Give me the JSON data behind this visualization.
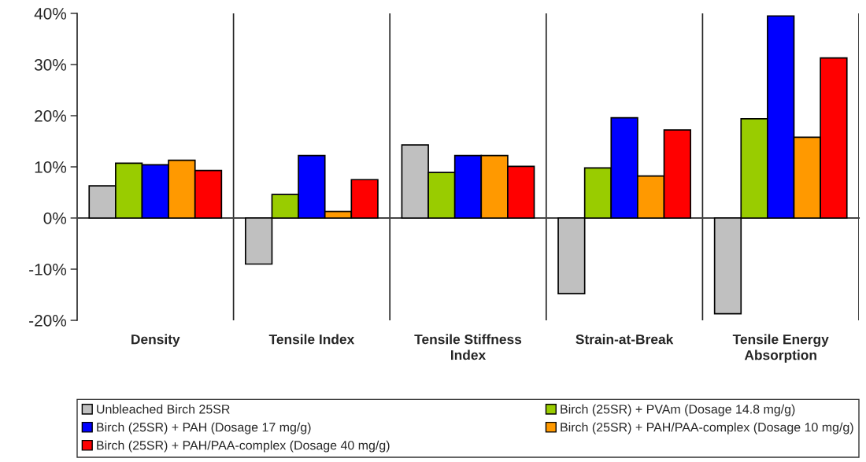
{
  "chart_data": {
    "type": "bar",
    "categories": [
      "Density",
      "Tensile Index",
      "Tensile Stiffness Index",
      "Strain-at-Break",
      "Tensile Energy Absorption"
    ],
    "series": [
      {
        "name": "Unbleached Birch 25SR",
        "color": "#c0c0c0",
        "values": [
          6.3,
          -9.0,
          14.3,
          -14.8,
          -18.7
        ]
      },
      {
        "name": "Birch (25SR) + PVAm (Dosage 14.8 mg/g)",
        "color": "#99cc00",
        "values": [
          10.7,
          4.6,
          8.9,
          9.8,
          19.4
        ]
      },
      {
        "name": "Birch (25SR) + PAH (Dosage 17 mg/g)",
        "color": "#0000ff",
        "values": [
          10.4,
          12.2,
          12.2,
          19.6,
          39.5
        ]
      },
      {
        "name": "Birch (25SR) + PAH/PAA-complex (Dosage 10 mg/g)",
        "color": "#ff9900",
        "values": [
          11.3,
          1.3,
          12.2,
          8.2,
          15.8
        ]
      },
      {
        "name": "Birch (25SR) + PAH/PAA-complex (Dosage 40 mg/g)",
        "color": "#ff0000",
        "values": [
          9.3,
          7.5,
          10.1,
          17.2,
          31.3
        ]
      }
    ],
    "ylim": [
      -20,
      40
    ],
    "yticks": [
      {
        "value": -20,
        "label": "-20%"
      },
      {
        "value": -10,
        "label": "-10%"
      },
      {
        "value": 0,
        "label": "0%"
      },
      {
        "value": 10,
        "label": "10%"
      },
      {
        "value": 20,
        "label": "20%"
      },
      {
        "value": 30,
        "label": "30%"
      },
      {
        "value": 40,
        "label": "40%"
      }
    ],
    "grid": "x",
    "legend": "bottom"
  }
}
